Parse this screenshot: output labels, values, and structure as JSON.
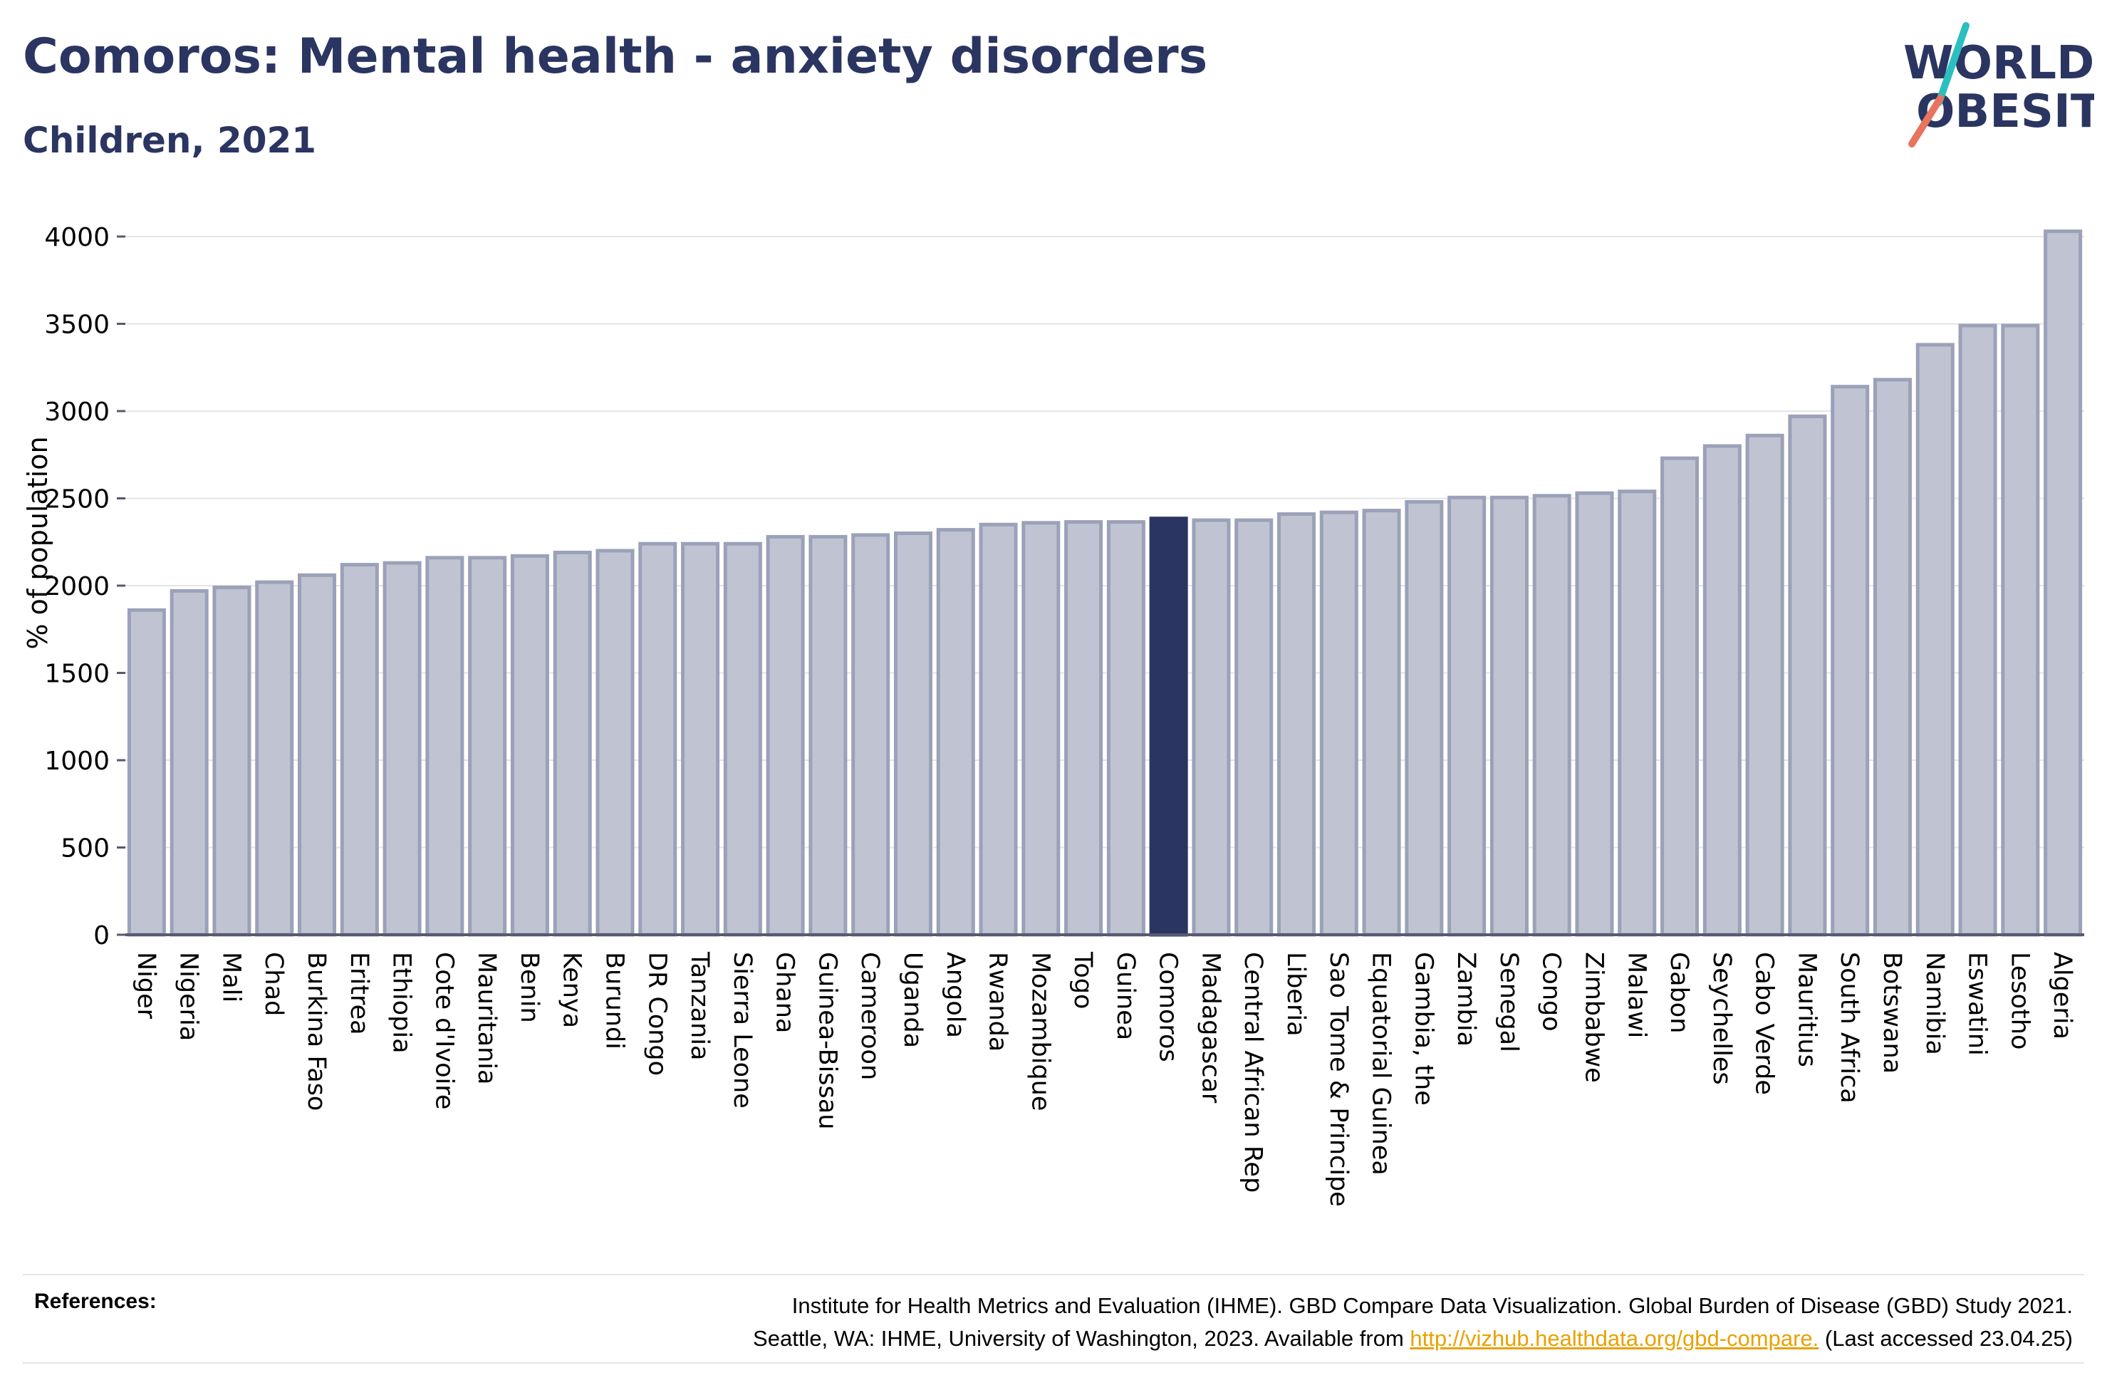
{
  "header": {
    "title": "Comoros: Mental health - anxiety disorders",
    "subtitle": "Children, 2021",
    "logo_line1": "WORLD",
    "logo_line2": "OBESITY"
  },
  "colors": {
    "highlight": "#2b3561",
    "bar_fill": "#c0c4d2",
    "bar_stroke": "#9ba1b8",
    "title": "#2b3561",
    "logo_teal": "#2bbfbf",
    "logo_coral": "#e8735f",
    "link": "#e8a100"
  },
  "chart_data": {
    "type": "bar",
    "ylabel": "% of population",
    "xlabel": "",
    "ylim": [
      0,
      4000
    ],
    "yticks": [
      0,
      500,
      1000,
      1500,
      2000,
      2500,
      3000,
      3500,
      4000
    ],
    "grid": true,
    "highlight": "Comoros",
    "categories": [
      "Niger",
      "Nigeria",
      "Mali",
      "Chad",
      "Burkina Faso",
      "Eritrea",
      "Ethiopia",
      "Cote d'Ivoire",
      "Mauritania",
      "Benin",
      "Kenya",
      "Burundi",
      "DR Congo",
      "Tanzania",
      "Sierra Leone",
      "Ghana",
      "Guinea-Bissau",
      "Cameroon",
      "Uganda",
      "Angola",
      "Rwanda",
      "Mozambique",
      "Togo",
      "Guinea",
      "Comoros",
      "Madagascar",
      "Central African Rep",
      "Liberia",
      "Sao Tome & Principe",
      "Equatorial Guinea",
      "Gambia, the",
      "Zambia",
      "Senegal",
      "Congo",
      "Zimbabwe",
      "Malawi",
      "Gabon",
      "Seychelles",
      "Cabo Verde",
      "Mauritius",
      "South Africa",
      "Botswana",
      "Namibia",
      "Eswatini",
      "Lesotho",
      "Algeria"
    ],
    "values": [
      1860,
      1970,
      1990,
      2020,
      2060,
      2120,
      2130,
      2160,
      2160,
      2170,
      2190,
      2200,
      2240,
      2240,
      2240,
      2280,
      2280,
      2290,
      2300,
      2320,
      2350,
      2360,
      2365,
      2365,
      2385,
      2375,
      2375,
      2410,
      2420,
      2430,
      2480,
      2505,
      2505,
      2515,
      2530,
      2540,
      2730,
      2800,
      2860,
      2970,
      3140,
      3180,
      3380,
      3490,
      3490,
      4030
    ]
  },
  "references": {
    "label": "References:",
    "line1": "Institute for Health Metrics and Evaluation (IHME). GBD Compare Data Visualization. Global Burden of Disease (GBD) Study 2021.",
    "line2_prefix": "Seattle, WA: IHME, University of Washington, 2023. Available from ",
    "link": "http://vizhub.healthdata.org/gbd-compare.",
    "line2_suffix": " (Last accessed 23.04.25)"
  }
}
